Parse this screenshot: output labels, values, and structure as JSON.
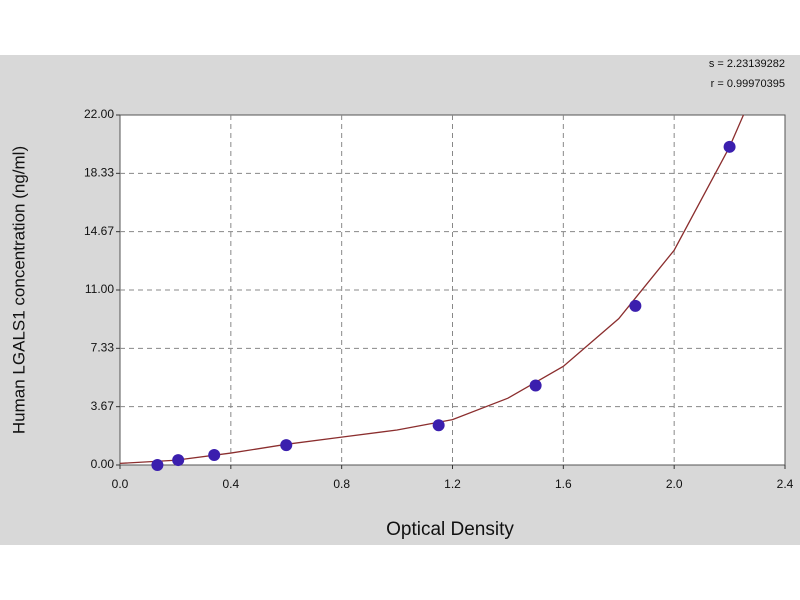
{
  "chart_data": {
    "type": "scatter",
    "xlabel": "Optical Density",
    "ylabel": "Human LGALS1 concentration (ng/ml)",
    "annotations": [
      "s = 2.23139282",
      "r = 0.99970395"
    ],
    "xlim": [
      0,
      2.4
    ],
    "ylim": [
      0,
      22
    ],
    "xticks": [
      {
        "value": 0,
        "label": "0.0"
      },
      0.4,
      0.8,
      1.2,
      1.6,
      {
        "value": 2,
        "label": "2.0"
      },
      2.4
    ],
    "yticks": [
      {
        "value": 0,
        "label": "0.00"
      },
      {
        "value": 3.6667,
        "label": "3.67"
      },
      {
        "value": 7.3333,
        "label": "7.33"
      },
      {
        "value": 11,
        "label": "11.00"
      },
      {
        "value": 14.6667,
        "label": "14.67"
      },
      {
        "value": 18.3333,
        "label": "18.33"
      },
      {
        "value": 22,
        "label": "22.00"
      }
    ],
    "grid": true,
    "points": {
      "color": "#3b1fae",
      "x": [
        0.135,
        0.21,
        0.34,
        0.6,
        1.15,
        1.5,
        1.86,
        2.2
      ],
      "y": [
        0,
        0.31,
        0.63,
        1.25,
        2.5,
        5,
        10,
        20
      ]
    },
    "fit": {
      "color": "#8b2e2e",
      "x": [
        0,
        0.2,
        0.4,
        0.6,
        0.8,
        1.0,
        1.2,
        1.4,
        1.6,
        1.8,
        2.0,
        2.2,
        2.25
      ],
      "y": [
        0.1,
        0.3,
        0.75,
        1.3,
        1.75,
        2.2,
        2.85,
        4.2,
        6.2,
        9.2,
        13.5,
        20.0,
        22.0
      ]
    }
  }
}
